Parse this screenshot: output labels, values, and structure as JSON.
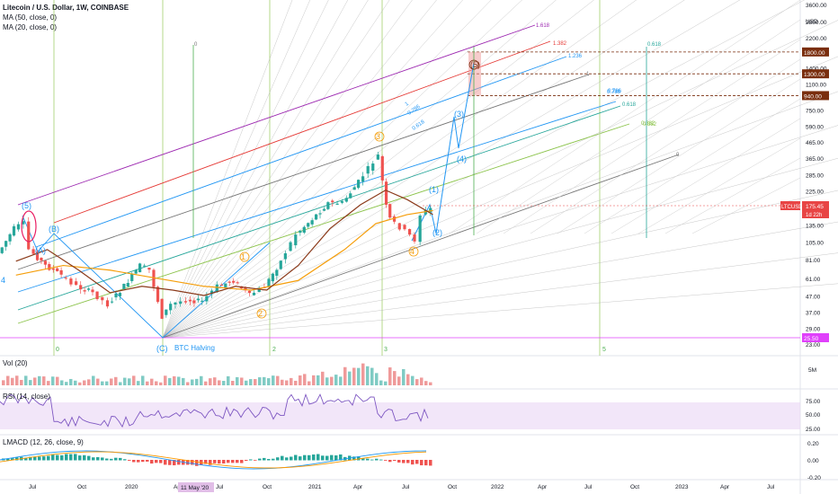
{
  "header": {
    "symbol_title": "Litecoin / U.S. Dollar, 1W, COINBASE",
    "ma50": "MA (50, close, 0)",
    "ma20": "MA (20, close, 0)"
  },
  "price_axis": {
    "currency": "USD",
    "ticks": [
      "3600.00",
      "2800.00",
      "2200.00",
      "1750.00",
      "1400.00",
      "1100.00",
      "750.00",
      "590.00",
      "465.00",
      "365.00",
      "285.00",
      "225.00",
      "135.00",
      "105.00",
      "81.00",
      "61.00",
      "47.00",
      "37.00",
      "29.00",
      "23.00"
    ],
    "badges": [
      {
        "text": "1800.00",
        "color": "#7a2e0e"
      },
      {
        "text": "1300.00",
        "color": "#7a2e0e"
      },
      {
        "text": "940.00",
        "color": "#7a2e0e"
      },
      {
        "text": "25.50",
        "color": "#e040fb"
      }
    ],
    "current": {
      "symbol": "LTCUSD",
      "price": "175.45",
      "countdown": "1d 22h",
      "color": "#e84545"
    }
  },
  "time_axis": {
    "ticks": [
      "Jul",
      "Oct",
      "2020",
      "Apr",
      "Jul",
      "Oct",
      "2021",
      "Apr",
      "Jul",
      "Oct",
      "2022",
      "Apr",
      "Jul",
      "Oct",
      "2023",
      "Apr",
      "Jul"
    ],
    "highlight": "11 May '20"
  },
  "annotations": {
    "halving": "BTC Halving",
    "fib_labels": [
      "1.618",
      "1.382",
      "1.236",
      "1",
      "0.786",
      "0.618",
      "0.382",
      "0"
    ],
    "fib_upper_labels": [
      "0.786",
      "0.618"
    ],
    "vertical_labels": [
      "0",
      "2",
      "3",
      "5",
      "0"
    ],
    "wave_labels": [
      "(5)",
      "(B)",
      "(A)",
      "(C)",
      "4",
      "1",
      "2",
      "3",
      "4",
      "(1)",
      "(2)",
      "(3)",
      "(4)",
      "(5)"
    ],
    "fan_labels": [
      "1",
      "0.786",
      "0.618"
    ],
    "vline_top_labels": [
      "0",
      "0.618",
      "0.382"
    ]
  },
  "panes": {
    "vol": {
      "title": "Vol (20)",
      "axis": "5M"
    },
    "rsi": {
      "title": "RSI (14, close)",
      "ticks": [
        "75.00",
        "50.00",
        "25.00"
      ]
    },
    "macd": {
      "title": "LMACD (12, 26, close, 9)",
      "ticks": [
        "0.20",
        "0.00",
        "-0.20"
      ]
    }
  },
  "chart_data": {
    "type": "candlestick",
    "title": "Litecoin / U.S. Dollar, 1W, COINBASE",
    "y_scale": "log",
    "ylim": [
      23,
      3600
    ],
    "x_range": [
      "2019-05",
      "2023-08"
    ],
    "price_path": [
      {
        "date": "2019-05",
        "close": 90
      },
      {
        "date": "2019-06",
        "close": 130
      },
      {
        "date": "2019-06-20",
        "close": 140
      },
      {
        "date": "2019-07",
        "close": 95
      },
      {
        "date": "2019-08",
        "close": 75
      },
      {
        "date": "2019-09",
        "close": 65
      },
      {
        "date": "2019-10",
        "close": 55
      },
      {
        "date": "2019-11",
        "close": 50
      },
      {
        "date": "2019-12",
        "close": 42
      },
      {
        "date": "2020-01",
        "close": 55
      },
      {
        "date": "2020-02",
        "close": 75
      },
      {
        "date": "2020-02-20",
        "close": 70
      },
      {
        "date": "2020-03-15",
        "close": 35
      },
      {
        "date": "2020-04",
        "close": 42
      },
      {
        "date": "2020-05",
        "close": 45
      },
      {
        "date": "2020-06",
        "close": 44
      },
      {
        "date": "2020-07",
        "close": 55
      },
      {
        "date": "2020-08",
        "close": 60
      },
      {
        "date": "2020-09",
        "close": 48
      },
      {
        "date": "2020-10",
        "close": 55
      },
      {
        "date": "2020-11",
        "close": 80
      },
      {
        "date": "2020-12",
        "close": 120
      },
      {
        "date": "2021-01",
        "close": 150
      },
      {
        "date": "2021-02",
        "close": 190
      },
      {
        "date": "2021-03",
        "close": 190
      },
      {
        "date": "2021-04",
        "close": 260
      },
      {
        "date": "2021-05-10",
        "close": 385
      },
      {
        "date": "2021-05-25",
        "close": 180
      },
      {
        "date": "2021-06",
        "close": 150
      },
      {
        "date": "2021-07",
        "close": 125
      },
      {
        "date": "2021-07-20",
        "close": 110
      },
      {
        "date": "2021-08",
        "close": 160
      },
      {
        "date": "2021-08-20",
        "close": 175.45
      }
    ],
    "ma20": [
      {
        "date": "2019-06",
        "value": 80
      },
      {
        "date": "2019-08",
        "value": 95
      },
      {
        "date": "2019-10",
        "value": 70
      },
      {
        "date": "2019-12",
        "value": 50
      },
      {
        "date": "2020-02",
        "value": 55
      },
      {
        "date": "2020-04",
        "value": 52
      },
      {
        "date": "2020-06",
        "value": 48
      },
      {
        "date": "2020-08",
        "value": 55
      },
      {
        "date": "2020-10",
        "value": 52
      },
      {
        "date": "2020-12",
        "value": 75
      },
      {
        "date": "2021-02",
        "value": 130
      },
      {
        "date": "2021-04",
        "value": 185
      },
      {
        "date": "2021-05-20",
        "value": 230
      },
      {
        "date": "2021-07",
        "value": 200
      },
      {
        "date": "2021-08-20",
        "value": 160
      }
    ],
    "ma50": [
      {
        "date": "2019-06",
        "value": 65
      },
      {
        "date": "2019-09",
        "value": 75
      },
      {
        "date": "2019-12",
        "value": 70
      },
      {
        "date": "2020-03",
        "value": 62
      },
      {
        "date": "2020-06",
        "value": 55
      },
      {
        "date": "2020-09",
        "value": 52
      },
      {
        "date": "2020-12",
        "value": 60
      },
      {
        "date": "2021-03",
        "value": 95
      },
      {
        "date": "2021-05",
        "value": 140
      },
      {
        "date": "2021-07",
        "value": 160
      },
      {
        "date": "2021-08-20",
        "value": 170
      }
    ],
    "horizontal_levels": [
      1800,
      1300,
      940,
      25.5
    ],
    "rsi_range": [
      25,
      75
    ],
    "macd_range": [
      -0.2,
      0.2
    ]
  }
}
